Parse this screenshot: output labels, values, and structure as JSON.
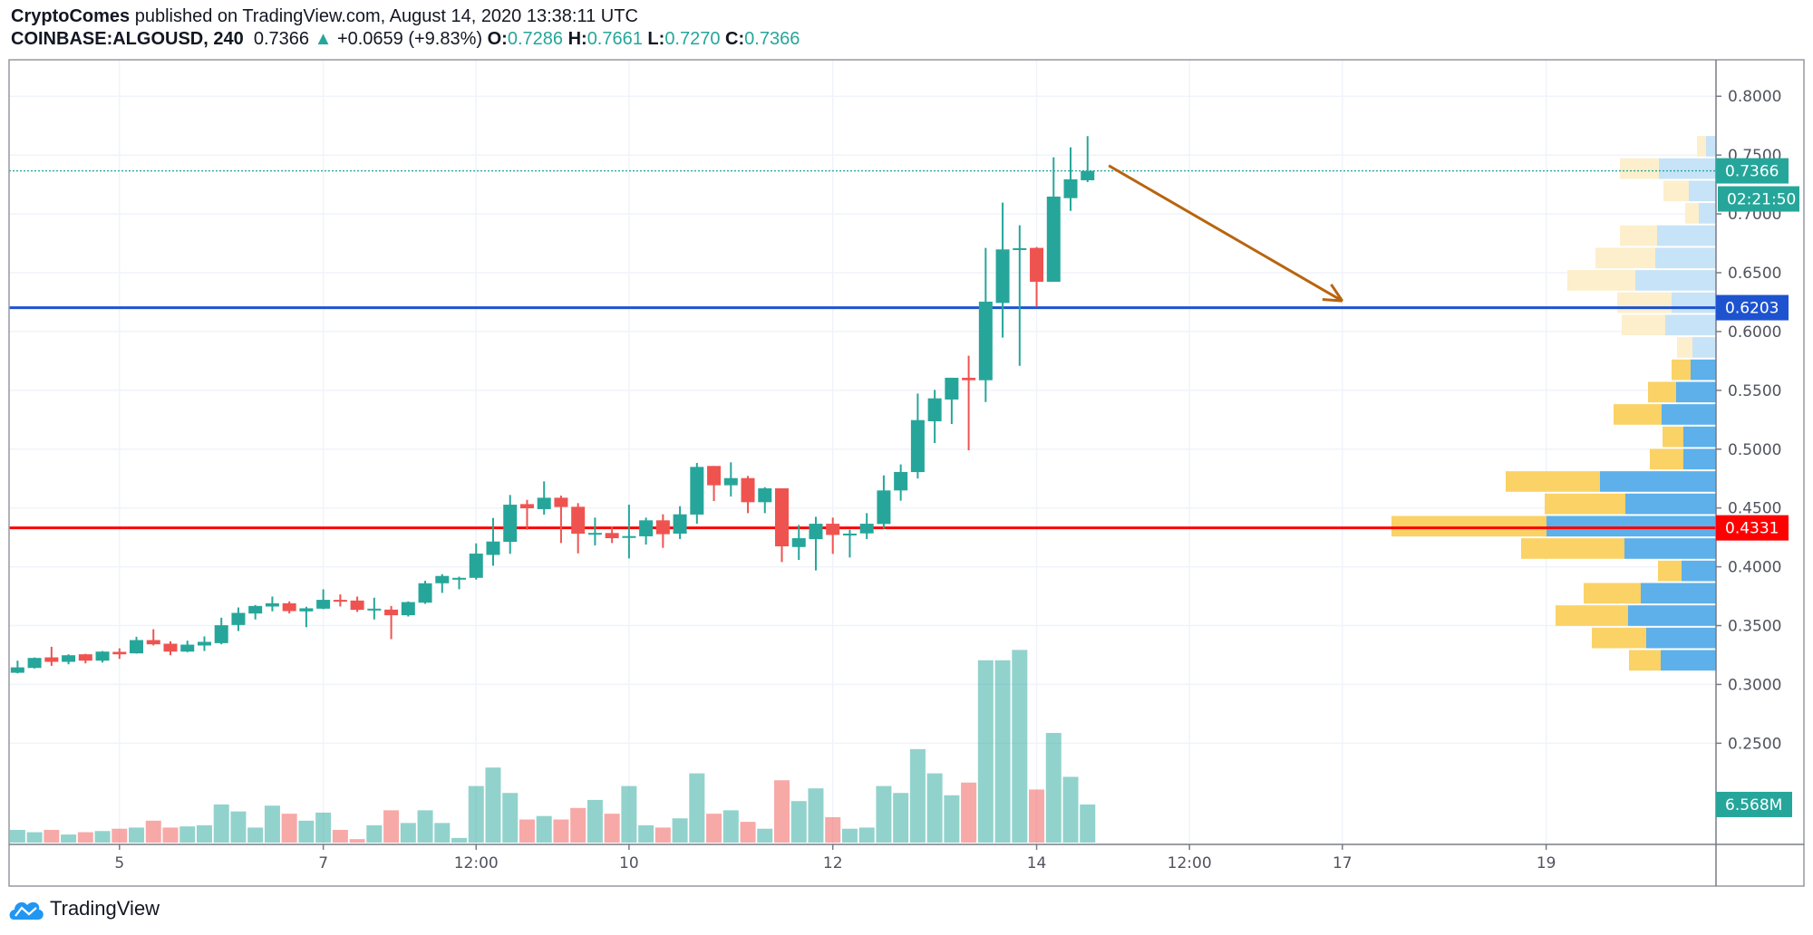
{
  "header": {
    "author": "CryptoComes",
    "published_text": "published on TradingView.com, August 14, 2020 13:38:11 UTC",
    "symbol": "COINBASE:ALGOUSD, 240",
    "last": "0.7366",
    "change": "+0.0659 (+9.83%)",
    "o_label": "O:",
    "o": "0.7286",
    "h_label": "H:",
    "h": "0.7661",
    "l_label": "L:",
    "l": "0.7270",
    "c_label": "C:",
    "c": "0.7366",
    "up_icon": "triangle-up-icon"
  },
  "footer": {
    "brand": "TradingView",
    "logo_icon": "tradingview-cloud-logo"
  },
  "colors": {
    "up": "#26a69a",
    "down": "#ef5350",
    "support_line": "#1e53d0",
    "resistance_line": "#ff0000",
    "arrow": "#b8650f",
    "vp_up": "#5db0ea",
    "vp_down": "#fad266",
    "vp_up_light": "#c7e3f7",
    "vp_down_light": "#fdefcc"
  },
  "chart_data": {
    "type": "candlestick",
    "interval": "240",
    "first_bar_time": "2020-08-04 00:00",
    "bar_hours": 4,
    "xlim": [
      "2020-08-03 22:00",
      "2020-08-20 16:00"
    ],
    "ylim": [
      0.164,
      0.831
    ],
    "grid": true,
    "price_ticks": [
      "0.8000",
      "0.7500",
      "0.7000",
      "0.6500",
      "0.6000",
      "0.5500",
      "0.5000",
      "0.4500",
      "0.4000",
      "0.3500",
      "0.3000",
      "0.2500"
    ],
    "time_ticks": [
      {
        "label": "5",
        "time": "2020-08-05 00:00"
      },
      {
        "label": "7",
        "time": "2020-08-07 00:00"
      },
      {
        "label": "12:00",
        "time": "2020-08-08 12:00"
      },
      {
        "label": "10",
        "time": "2020-08-10 00:00"
      },
      {
        "label": "12",
        "time": "2020-08-12 00:00"
      },
      {
        "label": "14",
        "time": "2020-08-14 00:00"
      },
      {
        "label": "12:00",
        "time": "2020-08-15 12:00"
      },
      {
        "label": "17",
        "time": "2020-08-17 00:00"
      },
      {
        "label": "19",
        "time": "2020-08-19 00:00"
      }
    ],
    "ohlc": [
      [
        0.3099,
        0.3202,
        0.3094,
        0.3145
      ],
      [
        0.314,
        0.3229,
        0.3135,
        0.3225
      ],
      [
        0.323,
        0.332,
        0.3158,
        0.3192
      ],
      [
        0.3192,
        0.3256,
        0.3171,
        0.3248
      ],
      [
        0.3256,
        0.326,
        0.3179,
        0.3202
      ],
      [
        0.3202,
        0.3284,
        0.3186,
        0.3279
      ],
      [
        0.3277,
        0.3307,
        0.3217,
        0.3256
      ],
      [
        0.3264,
        0.3405,
        0.3262,
        0.3377
      ],
      [
        0.3377,
        0.3469,
        0.3331,
        0.3341
      ],
      [
        0.3346,
        0.3367,
        0.3248,
        0.3279
      ],
      [
        0.3279,
        0.3372,
        0.3274,
        0.3338
      ],
      [
        0.3331,
        0.3408,
        0.3284,
        0.3362
      ],
      [
        0.3351,
        0.3567,
        0.3341,
        0.3503
      ],
      [
        0.3505,
        0.3654,
        0.3454,
        0.3608
      ],
      [
        0.3603,
        0.3675,
        0.3552,
        0.3667
      ],
      [
        0.3662,
        0.3747,
        0.3621,
        0.369
      ],
      [
        0.369,
        0.3706,
        0.3603,
        0.3623
      ],
      [
        0.3621,
        0.366,
        0.3487,
        0.3647
      ],
      [
        0.3644,
        0.3808,
        0.3639,
        0.3719
      ],
      [
        0.3719,
        0.3765,
        0.3662,
        0.3703
      ],
      [
        0.3713,
        0.3747,
        0.3616,
        0.3634
      ],
      [
        0.3629,
        0.3737,
        0.3552,
        0.3644
      ],
      [
        0.3636,
        0.3667,
        0.3385,
        0.3588
      ],
      [
        0.3588,
        0.3706,
        0.3577,
        0.37
      ],
      [
        0.3695,
        0.3881,
        0.3685,
        0.386
      ],
      [
        0.386,
        0.3937,
        0.3778,
        0.3922
      ],
      [
        0.3891,
        0.3916,
        0.3809,
        0.3906
      ],
      [
        0.3906,
        0.4199,
        0.3891,
        0.4112
      ],
      [
        0.4101,
        0.4415,
        0.4009,
        0.4215
      ],
      [
        0.4212,
        0.461,
        0.411,
        0.4528
      ],
      [
        0.4533,
        0.4569,
        0.4315,
        0.4497
      ],
      [
        0.449,
        0.4726,
        0.4443,
        0.4587
      ],
      [
        0.4587,
        0.4605,
        0.4202,
        0.4508
      ],
      [
        0.451,
        0.4541,
        0.4114,
        0.4281
      ],
      [
        0.4278,
        0.4418,
        0.4182,
        0.4288
      ],
      [
        0.4287,
        0.4343,
        0.4202,
        0.4243
      ],
      [
        0.4251,
        0.4528,
        0.4071,
        0.4261
      ],
      [
        0.4259,
        0.4418,
        0.4189,
        0.4395
      ],
      [
        0.4395,
        0.4446,
        0.4161,
        0.4277
      ],
      [
        0.4282,
        0.4515,
        0.4236,
        0.4446
      ],
      [
        0.4444,
        0.4883,
        0.4367,
        0.4849
      ],
      [
        0.4857,
        0.4857,
        0.4559,
        0.4693
      ],
      [
        0.4693,
        0.4888,
        0.4598,
        0.4754
      ],
      [
        0.4754,
        0.4772,
        0.4456,
        0.4549
      ],
      [
        0.4549,
        0.4677,
        0.4456,
        0.4667
      ],
      [
        0.4667,
        0.4667,
        0.404,
        0.4174
      ],
      [
        0.4168,
        0.4356,
        0.4058,
        0.4243
      ],
      [
        0.4235,
        0.4425,
        0.3969,
        0.4366
      ],
      [
        0.4366,
        0.4418,
        0.411,
        0.4271
      ],
      [
        0.4272,
        0.4315,
        0.4079,
        0.4282
      ],
      [
        0.4284,
        0.4456,
        0.4236,
        0.4366
      ],
      [
        0.4364,
        0.4777,
        0.4323,
        0.4649
      ],
      [
        0.4649,
        0.487,
        0.4562,
        0.4806
      ],
      [
        0.4805,
        0.5473,
        0.4751,
        0.5247
      ],
      [
        0.5237,
        0.5504,
        0.5052,
        0.5432
      ],
      [
        0.5422,
        0.5607,
        0.5214,
        0.5607
      ],
      [
        0.5607,
        0.5794,
        0.499,
        0.5586
      ],
      [
        0.5586,
        0.6711,
        0.5401,
        0.6254
      ],
      [
        0.6243,
        0.7096,
        0.5948,
        0.6698
      ],
      [
        0.6695,
        0.6903,
        0.5709,
        0.6708
      ],
      [
        0.6711,
        0.6718,
        0.621,
        0.6423
      ],
      [
        0.6423,
        0.7481,
        0.6423,
        0.7147
      ],
      [
        0.7134,
        0.7566,
        0.7026,
        0.7294
      ],
      [
        0.7286,
        0.7661,
        0.727,
        0.7366
      ]
    ],
    "volume_millions": [
      2.19,
      1.79,
      2.19,
      1.39,
      1.79,
      1.99,
      2.39,
      2.59,
      3.78,
      2.59,
      2.79,
      2.99,
      6.57,
      5.37,
      2.59,
      6.37,
      4.98,
      3.78,
      5.17,
      2.19,
      0.6,
      2.99,
      5.57,
      3.38,
      5.57,
      3.38,
      0.8,
      9.75,
      12.94,
      8.56,
      3.98,
      4.58,
      3.98,
      5.97,
      7.36,
      4.98,
      9.75,
      2.99,
      2.59,
      4.18,
      11.94,
      4.98,
      5.57,
      3.58,
      2.39,
      10.75,
      7.16,
      9.35,
      4.38,
      2.39,
      2.59,
      9.75,
      8.56,
      16.12,
      11.94,
      8.16,
      10.35,
      31.44,
      31.44,
      33.23,
      9.15,
      18.91,
      11.34,
      6.57
    ],
    "volume_profile": {
      "row_start_price": 0.311,
      "row_step": 0.019,
      "rows": [
        {
          "up": 61,
          "down": 35,
          "value_area": true
        },
        {
          "up": 77,
          "down": 60,
          "value_area": true
        },
        {
          "up": 97,
          "down": 80,
          "value_area": true
        },
        {
          "up": 83,
          "down": 63,
          "value_area": true
        },
        {
          "up": 38,
          "down": 26,
          "value_area": true
        },
        {
          "up": 101,
          "down": 114,
          "value_area": true
        },
        {
          "up": 187,
          "down": 171,
          "value_area": true
        },
        {
          "up": 100,
          "down": 89,
          "value_area": true
        },
        {
          "up": 128,
          "down": 104,
          "value_area": true
        },
        {
          "up": 36,
          "down": 37,
          "value_area": true
        },
        {
          "up": 36,
          "down": 23,
          "value_area": true
        },
        {
          "up": 60,
          "down": 53,
          "value_area": true
        },
        {
          "up": 44,
          "down": 31,
          "value_area": true
        },
        {
          "up": 28,
          "down": 21,
          "value_area": true
        },
        {
          "up": 26,
          "down": 17,
          "value_area": false
        },
        {
          "up": 56,
          "down": 48,
          "value_area": false
        },
        {
          "up": 49,
          "down": 60,
          "value_area": false
        },
        {
          "up": 89,
          "down": 75,
          "value_area": false
        },
        {
          "up": 67,
          "down": 66,
          "value_area": false
        },
        {
          "up": 65,
          "down": 41,
          "value_area": false
        },
        {
          "up": 19,
          "down": 15,
          "value_area": false
        },
        {
          "up": 30,
          "down": 28,
          "value_area": false
        },
        {
          "up": 63,
          "down": 43,
          "value_area": false
        },
        {
          "up": 11,
          "down": 10,
          "value_area": false
        }
      ]
    },
    "horizontal_lines": [
      {
        "price": 0.6203,
        "label": "0.6203",
        "color": "#1e53d0"
      },
      {
        "price": 0.4331,
        "label": "0.4331",
        "color": "#ff0000"
      }
    ],
    "last_price": {
      "price": 0.7366,
      "label": "0.7366",
      "countdown": "02:21:50"
    },
    "last_volume_label": "6.568M",
    "arrow": {
      "from": {
        "time": "2020-08-14 17:00",
        "price": 0.741
      },
      "to": {
        "time": "2020-08-17 00:00",
        "price": 0.626
      }
    }
  }
}
